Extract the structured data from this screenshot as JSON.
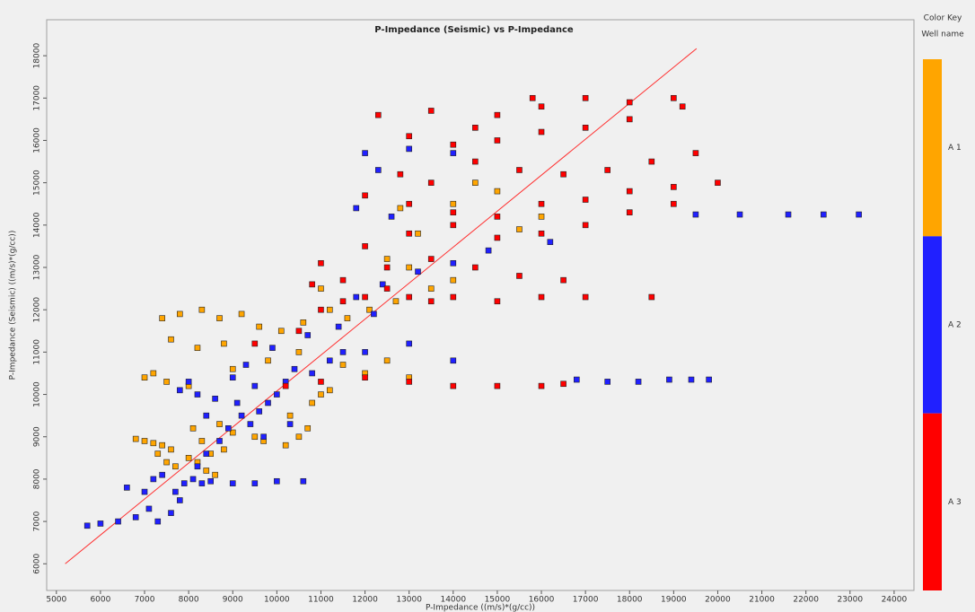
{
  "chart_data": {
    "type": "scatter",
    "title": "P-Impedance (Seismic) vs P-Impedance",
    "x_label": "P-Impedance ((m/s)*(g/cc))",
    "y_label": "P-Impedance (Seismic) ((m/s)*(g/cc))",
    "legend_title": "Color Key",
    "legend_subtitle": "Well name",
    "xlim": [
      4780,
      24450
    ],
    "ylim": [
      5370,
      18850
    ],
    "xticks": [
      5000,
      6000,
      7000,
      8000,
      9000,
      10000,
      11000,
      12000,
      13000,
      14000,
      15000,
      16000,
      17000,
      18000,
      19000,
      20000,
      21000,
      22000,
      23000,
      24000
    ],
    "yticks": [
      6000,
      7000,
      8000,
      9000,
      10000,
      11000,
      12000,
      13000,
      14000,
      15000,
      16000,
      17000,
      18000
    ],
    "reference_line": {
      "color": "#ff3030",
      "x": [
        5200,
        19520
      ],
      "y": [
        6000,
        18170
      ]
    },
    "series": [
      {
        "name": "A 1",
        "color": "#ffa500",
        "x": [
          6800,
          7000,
          7200,
          7400,
          7600,
          7300,
          7500,
          7700,
          8000,
          8200,
          8400,
          8600,
          8500,
          8800,
          8300,
          8100,
          8700,
          9000,
          9500,
          9700,
          10200,
          10500,
          10700,
          10300,
          10800,
          11000,
          11200,
          7000,
          7200,
          7500,
          8000,
          9000,
          9800,
          10500,
          11500,
          12000,
          12500,
          13000,
          7400,
          7800,
          8300,
          8700,
          9200,
          9600,
          10100,
          10600,
          11200,
          11600,
          12100,
          12700,
          13500,
          7600,
          8200,
          8800,
          11000,
          12500,
          13200,
          14000,
          14500,
          15500,
          16000,
          15000,
          13000,
          12800,
          14000
        ],
        "values": [
          8950,
          8900,
          8850,
          8800,
          8700,
          8600,
          8400,
          8300,
          8500,
          8400,
          8200,
          8100,
          8600,
          8700,
          8900,
          9200,
          9300,
          9100,
          9000,
          8900,
          8800,
          9000,
          9200,
          9500,
          9800,
          10000,
          10100,
          10400,
          10500,
          10300,
          10200,
          10600,
          10800,
          11000,
          10700,
          10500,
          10800,
          10400,
          11800,
          11900,
          12000,
          11800,
          11900,
          11600,
          11500,
          11700,
          12000,
          11800,
          12000,
          12200,
          12500,
          11300,
          11100,
          11200,
          12500,
          13200,
          13800,
          14500,
          15000,
          13900,
          14200,
          14800,
          13000,
          14400,
          12700
        ]
      },
      {
        "name": "A 2",
        "color": "#2020ff",
        "x": [
          5700,
          6000,
          6400,
          6800,
          7100,
          7300,
          7600,
          7800,
          7900,
          8100,
          7700,
          8300,
          8500,
          9000,
          9500,
          10000,
          10600,
          7400,
          7200,
          8200,
          8400,
          8700,
          8900,
          9200,
          9400,
          9600,
          9800,
          9100,
          8600,
          8200,
          7800,
          8000,
          9000,
          9500,
          10000,
          10200,
          10400,
          10800,
          11200,
          11500,
          12000,
          13000,
          14000,
          8400,
          9700,
          10300,
          9300,
          9900,
          10700,
          11400,
          12200,
          11800,
          12400,
          13200,
          14000,
          14800,
          16200,
          12600,
          11800,
          12300,
          12000,
          13000,
          14000,
          16800,
          17500,
          18200,
          18900,
          19400,
          19800,
          19500,
          20500,
          21600,
          22400,
          23200,
          7000,
          6600
        ],
        "values": [
          6900,
          6950,
          7000,
          7100,
          7300,
          7000,
          7200,
          7500,
          7900,
          8000,
          7700,
          7900,
          7950,
          7900,
          7900,
          7950,
          7950,
          8100,
          8000,
          8300,
          8600,
          8900,
          9200,
          9500,
          9300,
          9600,
          9800,
          9800,
          9900,
          10000,
          10100,
          10300,
          10400,
          10200,
          10000,
          10300,
          10600,
          10500,
          10800,
          11000,
          11000,
          11200,
          10800,
          9500,
          9000,
          9300,
          10700,
          11100,
          11400,
          11600,
          11900,
          12300,
          12600,
          12900,
          13100,
          13400,
          13600,
          14200,
          14400,
          15300,
          15700,
          15800,
          15700,
          10350,
          10300,
          10300,
          10350,
          10350,
          10350,
          14250,
          14250,
          14250,
          14250,
          14250,
          7700,
          7800
        ]
      },
      {
        "name": "A 3",
        "color": "#ff0000",
        "x": [
          10200,
          11000,
          12000,
          13000,
          14000,
          15000,
          16000,
          16500,
          9500,
          10500,
          11000,
          11500,
          12000,
          12500,
          13000,
          13500,
          14000,
          15000,
          16000,
          17000,
          18500,
          11500,
          12500,
          13500,
          14500,
          15500,
          16500,
          12000,
          13000,
          14000,
          15000,
          16000,
          17000,
          18000,
          19000,
          12000,
          13000,
          14000,
          15000,
          16000,
          17000,
          18000,
          19000,
          20000,
          12800,
          13500,
          14500,
          15500,
          16500,
          17500,
          18500,
          19500,
          13000,
          14000,
          15000,
          16000,
          17000,
          18000,
          19200,
          12300,
          13500,
          15000,
          16000,
          17000,
          18000,
          19000,
          15800,
          14500,
          11000,
          10800
        ],
        "values": [
          10200,
          10300,
          10400,
          10300,
          10200,
          10200,
          10200,
          10250,
          11200,
          11500,
          12000,
          12200,
          12300,
          12500,
          12300,
          12200,
          12300,
          12200,
          12300,
          12300,
          12300,
          12700,
          13000,
          13200,
          13000,
          12800,
          12700,
          13500,
          13800,
          14000,
          13700,
          13800,
          14000,
          14300,
          14500,
          14700,
          14500,
          14300,
          14200,
          14500,
          14600,
          14800,
          14900,
          15000,
          15200,
          15000,
          15500,
          15300,
          15200,
          15300,
          15500,
          15700,
          16100,
          15900,
          16000,
          16200,
          16300,
          16500,
          16800,
          16600,
          16700,
          16600,
          16800,
          17000,
          16900,
          17000,
          17000,
          16300,
          13100,
          12600
        ]
      }
    ]
  }
}
